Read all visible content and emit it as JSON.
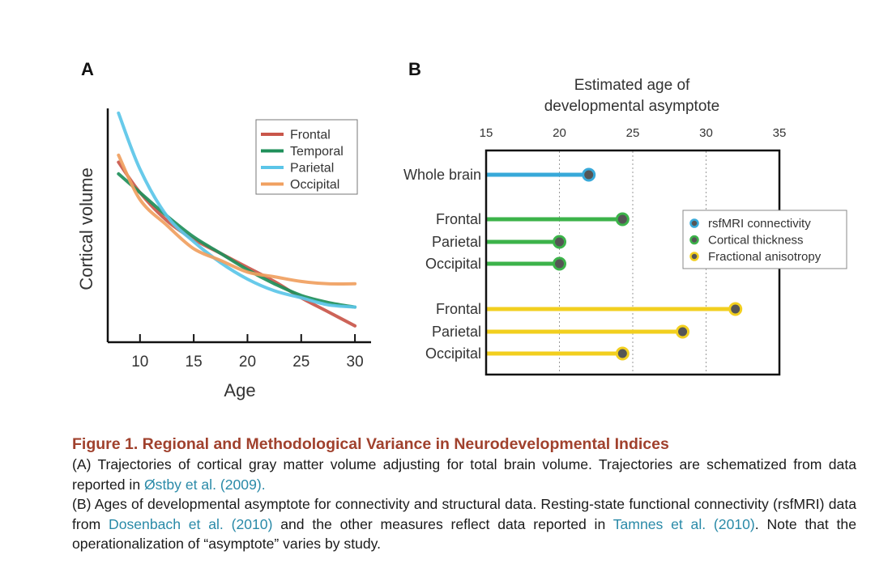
{
  "panel_a": {
    "letter": "A",
    "chart_data": {
      "type": "line",
      "title": "",
      "xlabel": "Age",
      "ylabel": "Cortical volume",
      "xlim": [
        7,
        31.5
      ],
      "ylim": [
        0,
        100
      ],
      "xticks": [
        10,
        15,
        20,
        25,
        30
      ],
      "yticks": [],
      "legend_position": "top-right",
      "series": [
        {
          "name": "Frontal",
          "color": "#c9564a",
          "x": [
            8,
            10,
            12.5,
            15,
            17.5,
            20,
            22.5,
            25,
            27.5,
            30
          ],
          "y": [
            77,
            64,
            52,
            44,
            38,
            32,
            26,
            19,
            13,
            7
          ]
        },
        {
          "name": "Temporal",
          "color": "#1f8f5a",
          "x": [
            8,
            10,
            12.5,
            15,
            17.5,
            20,
            22.5,
            25,
            27.5,
            30
          ],
          "y": [
            72,
            64,
            54,
            45,
            38,
            31,
            25,
            20,
            17,
            15
          ]
        },
        {
          "name": "Parietal",
          "color": "#5bc5e8",
          "x": [
            8,
            10,
            12.5,
            15,
            17.5,
            20,
            22.5,
            25,
            27.5,
            30
          ],
          "y": [
            98,
            74,
            54,
            43,
            34,
            27,
            22,
            19,
            16,
            15
          ]
        },
        {
          "name": "Occipital",
          "color": "#f0a060",
          "x": [
            8,
            10,
            12.5,
            15,
            17.5,
            20,
            22.5,
            25,
            27.5,
            30
          ],
          "y": [
            80,
            61,
            50,
            40,
            35,
            30,
            28,
            26,
            25,
            25
          ]
        }
      ]
    }
  },
  "panel_b": {
    "letter": "B",
    "chart_data": {
      "type": "lollipop",
      "title": "Estimated age of developmental asymptote",
      "title_lines": [
        "Estimated age of",
        "developmental asymptote"
      ],
      "xlim": [
        15,
        35
      ],
      "xticks": [
        15,
        20,
        25,
        30,
        35
      ],
      "gridlines_at": [
        20,
        25,
        30
      ],
      "legend_position": "right",
      "legend": [
        {
          "label": "rsfMRI connectivity",
          "color": "#38a9d9"
        },
        {
          "label": "Cortical thickness",
          "color": "#3cb34a"
        },
        {
          "label": "Fractional anisotropy",
          "color": "#f2cf1f"
        }
      ],
      "rows": [
        {
          "label": "Whole brain",
          "measure": "rsfMRI connectivity",
          "value": 22.0
        },
        {
          "label": "Frontal",
          "measure": "Cortical thickness",
          "value": 24.3
        },
        {
          "label": "Parietal",
          "measure": "Cortical thickness",
          "value": 20.0
        },
        {
          "label": "Occipital",
          "measure": "Cortical thickness",
          "value": 20.0
        },
        {
          "label": "Frontal",
          "measure": "Fractional anisotropy",
          "value": 32.0
        },
        {
          "label": "Parietal",
          "measure": "Fractional anisotropy",
          "value": 28.4
        },
        {
          "label": "Occipital",
          "measure": "Fractional anisotropy",
          "value": 24.3
        }
      ]
    }
  },
  "caption": {
    "title": "Figure 1.  Regional and Methodological Variance in Neurodevelopmental Indices",
    "para_a_1": "(A) Trajectories of cortical gray matter volume adjusting for total brain volume. Trajectories are schematized from data reported in ",
    "para_a_link": "Østby et al. (2009).",
    "para_b_1": "(B) Ages of developmental asymptote for connectivity and structural data. Resting-state functional connectivity (rsfMRI) data from ",
    "para_b_link1": "Dosenbach et al. (2010)",
    "para_b_2": " and the other measures reflect data reported in ",
    "para_b_link2": "Tamnes et al. (2010)",
    "para_b_3": ". Note that the operationalization of “asymptote” varies by study."
  }
}
